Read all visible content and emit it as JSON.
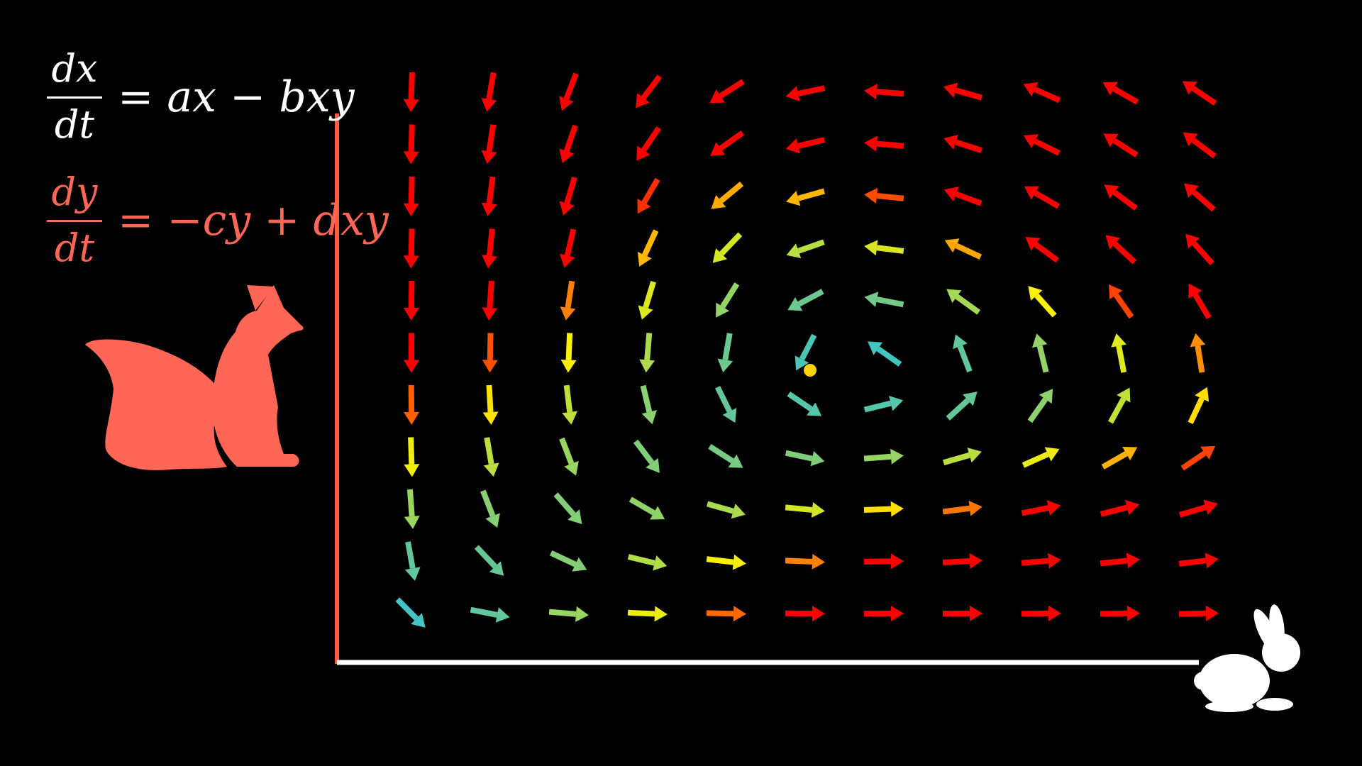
{
  "equations": {
    "dx": {
      "numerator": "dx",
      "denominator": "dt",
      "rhs": "= ax − bxy",
      "color": "#ffffff"
    },
    "dy": {
      "numerator": "dy",
      "denominator": "dt",
      "rhs": "= −cy + dxy",
      "color": "#ff6655"
    }
  },
  "icons": {
    "predator": "fox-icon",
    "prey": "rabbit-icon"
  },
  "colors": {
    "background": "#000000",
    "y_axis": "#ff5a4a",
    "x_axis": "#ffffff",
    "fox": "#ff6655",
    "rabbit": "#ffffff",
    "marker": "#ffd400"
  },
  "vector_field": {
    "model": "lotka-volterra",
    "columns": 11,
    "rows": 11,
    "equilibrium_marker": true
  }
}
